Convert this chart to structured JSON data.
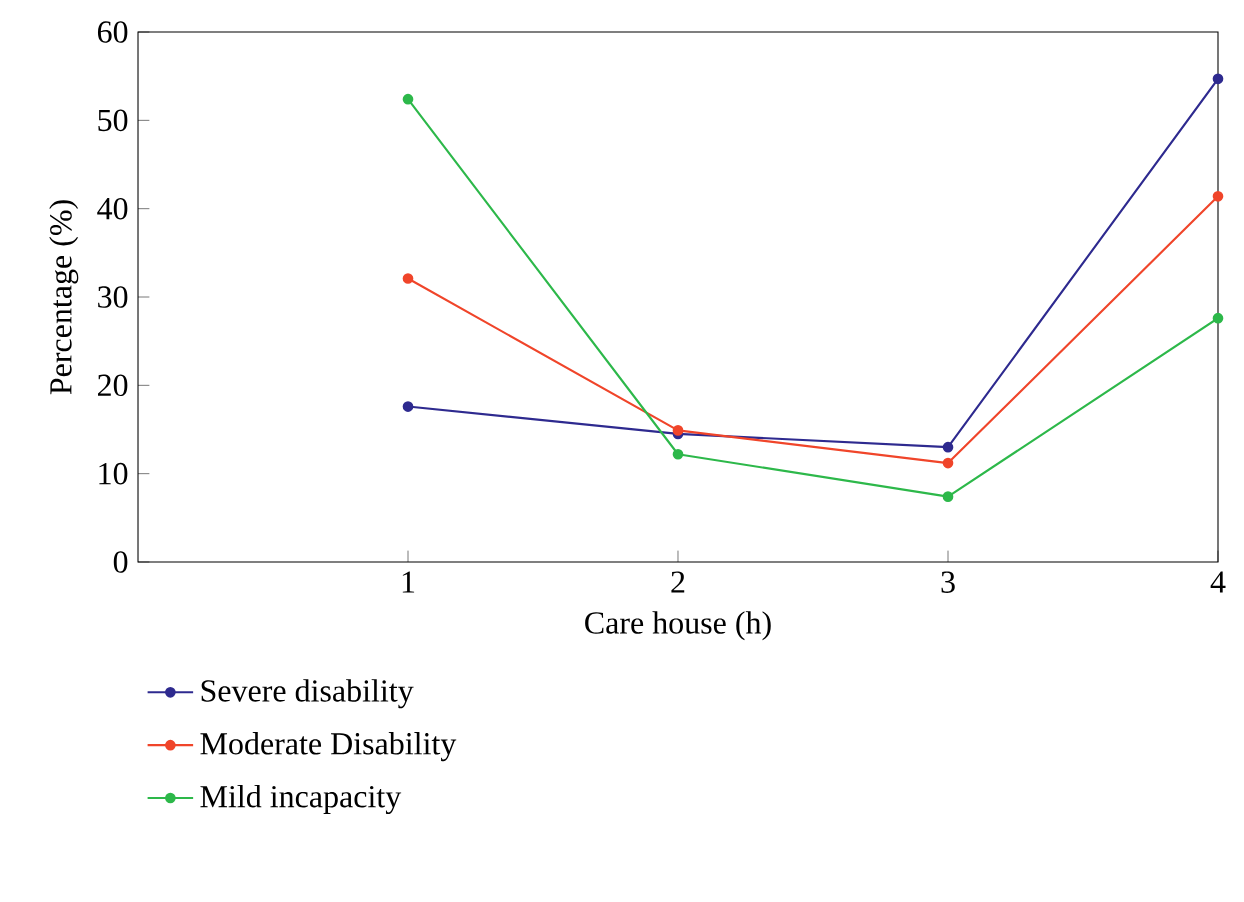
{
  "chart_data": {
    "type": "line",
    "xlabel": "Care house (h)",
    "ylabel": "Percentage (%)",
    "x": [
      1,
      2,
      3,
      4
    ],
    "xlim": [
      0,
      4
    ],
    "xticks": [
      1,
      2,
      3,
      4
    ],
    "ylim": [
      0,
      60
    ],
    "yticks": [
      0,
      10,
      20,
      30,
      40,
      50,
      60
    ],
    "grid": false,
    "legend": "bottom",
    "marker": "circle",
    "line_style": "solid",
    "series": [
      {
        "name": "Severe disability",
        "color": "#2e2a8f",
        "values": [
          17.6,
          14.5,
          13.0,
          54.7
        ]
      },
      {
        "name": "Moderate Disability",
        "color": "#f0452a",
        "values": [
          32.1,
          14.9,
          11.2,
          41.4
        ]
      },
      {
        "name": "Mild incapacity",
        "color": "#2db84a",
        "values": [
          52.4,
          12.2,
          7.4,
          27.6
        ]
      }
    ]
  }
}
